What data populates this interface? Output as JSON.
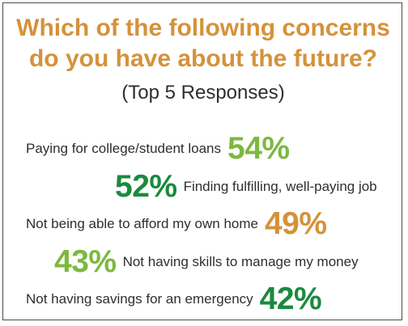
{
  "title_line1": "Which of the following concerns",
  "title_line2": "do you have about the future?",
  "subtitle": "(Top 5 Responses)",
  "colors": {
    "title": "#d5923a",
    "text": "#2e2e2e",
    "green": "#7cb940",
    "dark_green": "#1b8a3e",
    "orange": "#d5923a"
  },
  "chart_data": {
    "type": "table",
    "title": "Which of the following concerns do you have about the future?",
    "subtitle": "(Top 5 Responses)",
    "categories": [
      "Paying for college/student loans",
      "Finding fulfilling, well-paying job",
      "Not being able to afford my own home",
      "Not having skills to manage my money",
      "Not having savings for an emergency"
    ],
    "values": [
      54,
      52,
      49,
      43,
      42
    ],
    "value_labels": [
      "54%",
      "52%",
      "49%",
      "43%",
      "42%"
    ],
    "value_colors": [
      "#7cb940",
      "#1b8a3e",
      "#d5923a",
      "#7cb940",
      "#1b8a3e"
    ]
  }
}
